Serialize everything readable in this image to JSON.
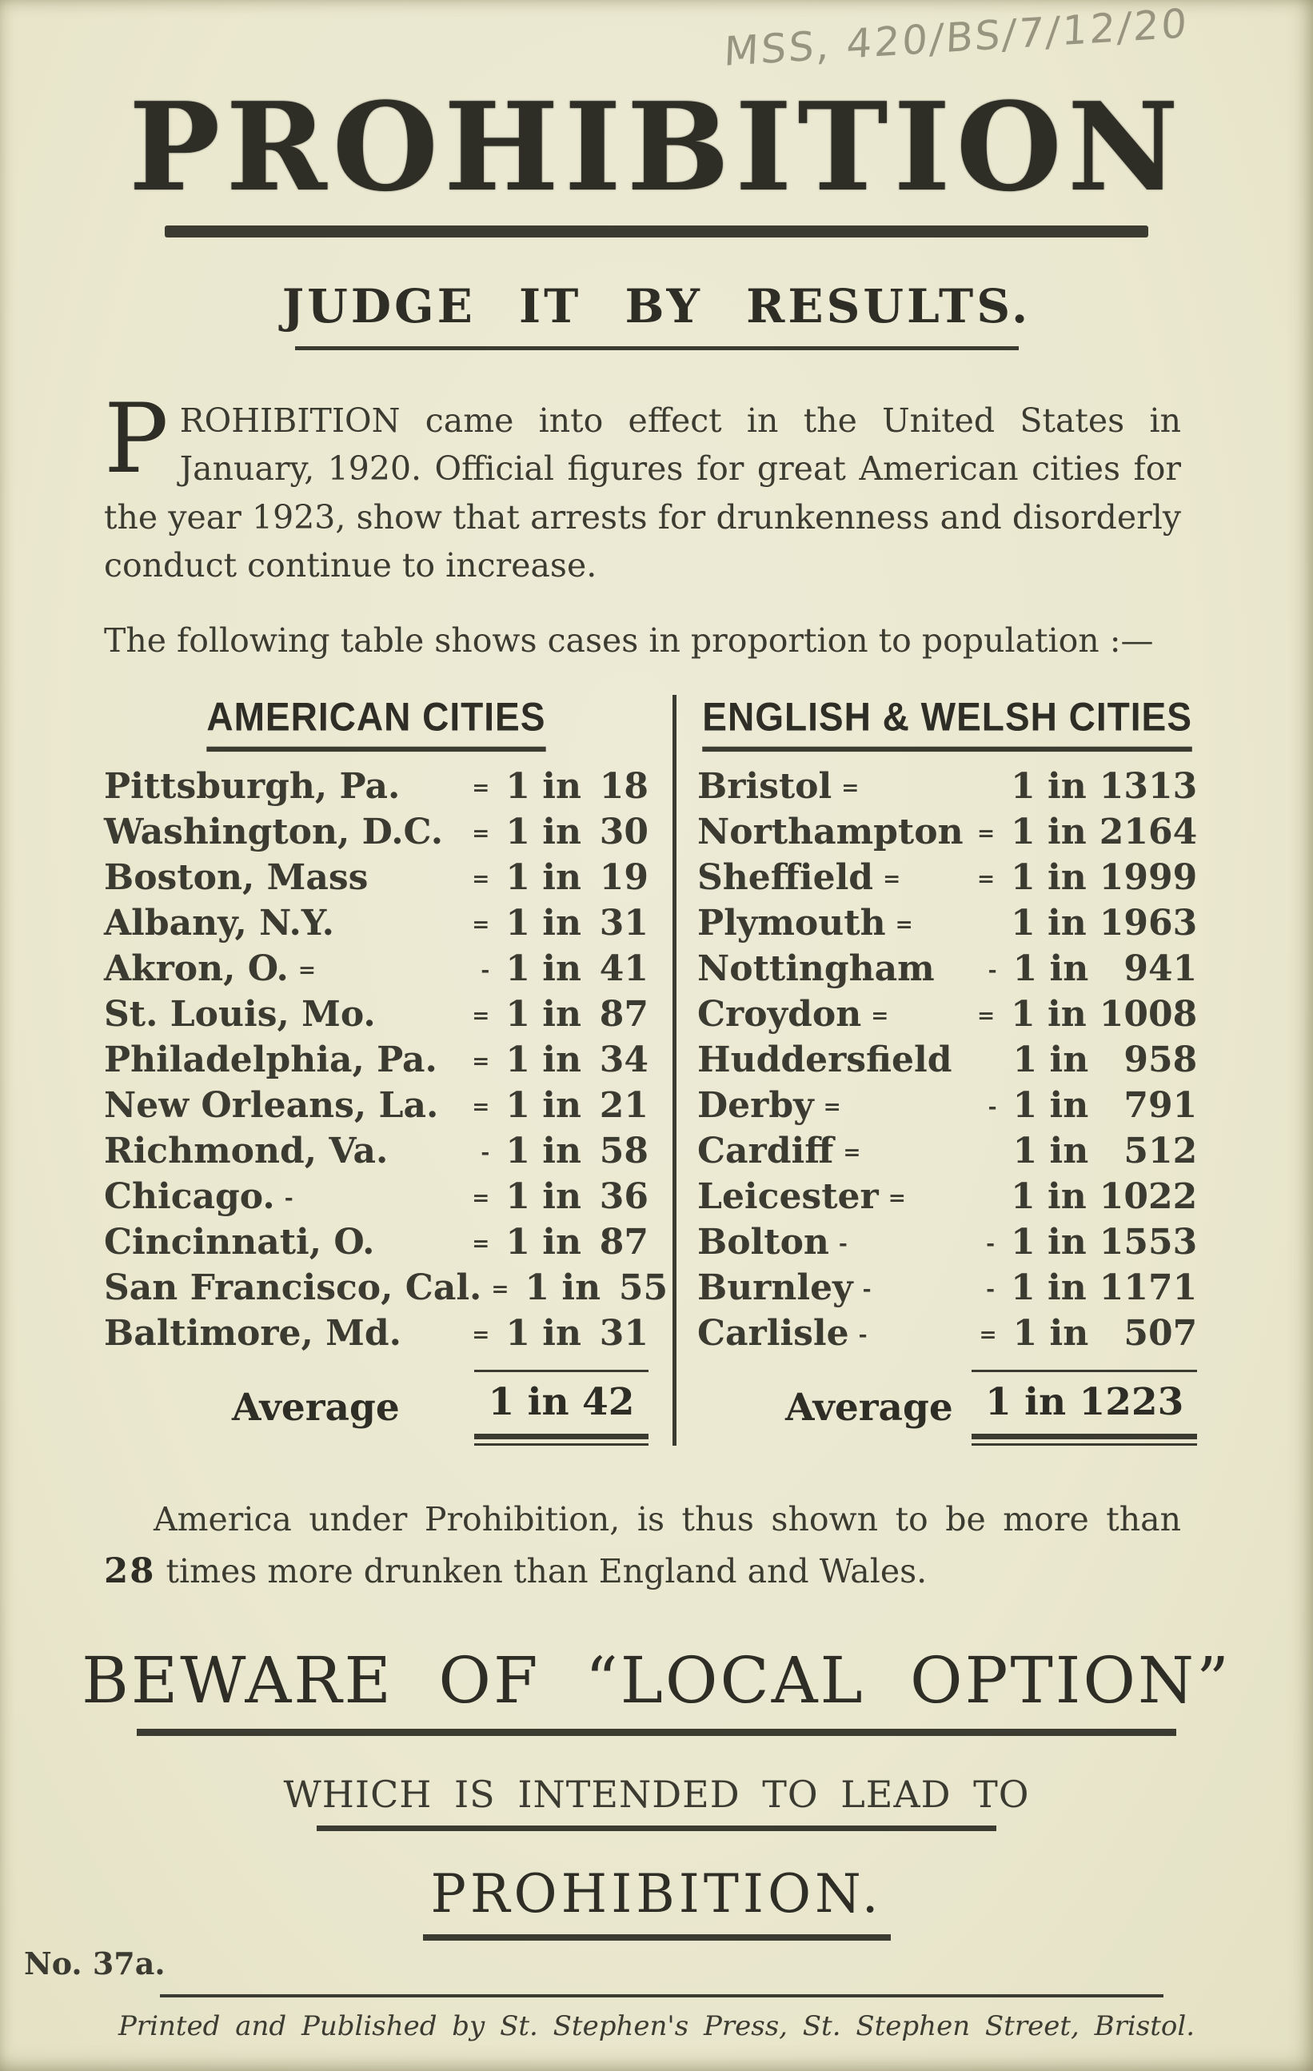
{
  "annotation": "MSS, 420/BS/7/12/20",
  "title": "PROHIBITION",
  "subtitle": "JUDGE IT BY RESULTS.",
  "intro": {
    "dropcap": "P",
    "text": "ROHIBITION came into effect in the United States in January, 1920.  Official figures for great American cities for the year 1923, show that arrests for drunkenness and disorderly conduct continue to increase."
  },
  "table_caption": "The following table shows cases in proportion to population :—",
  "tables": {
    "american": {
      "header": "AMERICAN CITIES",
      "rows": [
        {
          "city": "Pittsburgh, Pa.",
          "a": "",
          "b": "=",
          "vp": "1 in",
          "n": "18"
        },
        {
          "city": "Washington, D.C.",
          "a": "",
          "b": "=",
          "vp": "1 in",
          "n": "30"
        },
        {
          "city": "Boston, Mass",
          "a": "",
          "b": "=",
          "vp": "1 in",
          "n": "19"
        },
        {
          "city": "Albany, N.Y.",
          "a": "",
          "b": "=",
          "vp": "1 in",
          "n": "31"
        },
        {
          "city": "Akron, O.",
          "a": "=",
          "b": "-",
          "vp": "1 in",
          "n": "41"
        },
        {
          "city": "St. Louis, Mo.",
          "a": "",
          "b": "=",
          "vp": "1 in",
          "n": "87"
        },
        {
          "city": "Philadelphia, Pa.",
          "a": "",
          "b": "=",
          "vp": "1 in",
          "n": "34"
        },
        {
          "city": "New Orleans, La.",
          "a": "",
          "b": "=",
          "vp": "1 in",
          "n": "21"
        },
        {
          "city": "Richmond, Va.",
          "a": "",
          "b": "-",
          "vp": "1 in",
          "n": "58"
        },
        {
          "city": "Chicago.",
          "a": "-",
          "b": "=",
          "vp": "1 in",
          "n": "36"
        },
        {
          "city": "Cincinnati, O.",
          "a": "",
          "b": "=",
          "vp": "1 in",
          "n": "87"
        },
        {
          "city": "San Francisco, Cal.",
          "a": "",
          "b": "=",
          "vp": "1 in",
          "n": "55"
        },
        {
          "city": "Baltimore, Md.",
          "a": "",
          "b": "=",
          "vp": "1 in",
          "n": "31"
        }
      ],
      "average_label": "Average",
      "average_value": "1 in 42"
    },
    "english": {
      "header": "ENGLISH & WELSH CITIES",
      "rows": [
        {
          "city": "Bristol",
          "a": "=",
          "b": "",
          "vp": "1 in",
          "n": "1313"
        },
        {
          "city": "Northampton",
          "a": "",
          "b": "=",
          "vp": "1 in",
          "n": "2164"
        },
        {
          "city": "Sheffield",
          "a": "=",
          "b": "=",
          "vp": "1 in",
          "n": "1999"
        },
        {
          "city": "Plymouth",
          "a": "=",
          "b": "",
          "vp": "1 in",
          "n": "1963"
        },
        {
          "city": "Nottingham",
          "a": "",
          "b": "-",
          "vp": "1 in",
          "n": "941"
        },
        {
          "city": "Croydon",
          "a": "=",
          "b": "=",
          "vp": "1 in",
          "n": "1008"
        },
        {
          "city": "Huddersfield",
          "a": "",
          "b": "",
          "vp": "1 in",
          "n": "958"
        },
        {
          "city": "Derby",
          "a": "=",
          "b": "-",
          "vp": "1 in",
          "n": "791"
        },
        {
          "city": "Cardiff",
          "a": "=",
          "b": "",
          "vp": "1 in",
          "n": "512"
        },
        {
          "city": "Leicester",
          "a": "=",
          "b": "",
          "vp": "1 in",
          "n": "1022"
        },
        {
          "city": "Bolton",
          "a": "-",
          "b": "-",
          "vp": "1 in",
          "n": "1553"
        },
        {
          "city": "Burnley",
          "a": "-",
          "b": "-",
          "vp": "1 in",
          "n": "1171"
        },
        {
          "city": "Carlisle",
          "a": "-",
          "b": "=",
          "vp": "1 in",
          "n": "507"
        }
      ],
      "average_label": "Average",
      "average_value": "1 in 1223"
    }
  },
  "conclusion": {
    "before_bold": "America under Prohibition, is thus shown to be more than ",
    "bold": "28",
    "after_bold": " times more drunken than England and Wales."
  },
  "beware": "BEWARE OF “LOCAL OPTION”",
  "lead_to": "WHICH IS INTENDED TO LEAD TO",
  "prohibition_footer": "PROHIBITION.",
  "series_number": "No. 37a.",
  "printer": "Printed and Published by St. Stephen's Press, St. Stephen Street, Bristol.",
  "colors": {
    "paper": "#eae8cf",
    "ink": "#3c3b31",
    "pencil": "#8f8c78"
  }
}
